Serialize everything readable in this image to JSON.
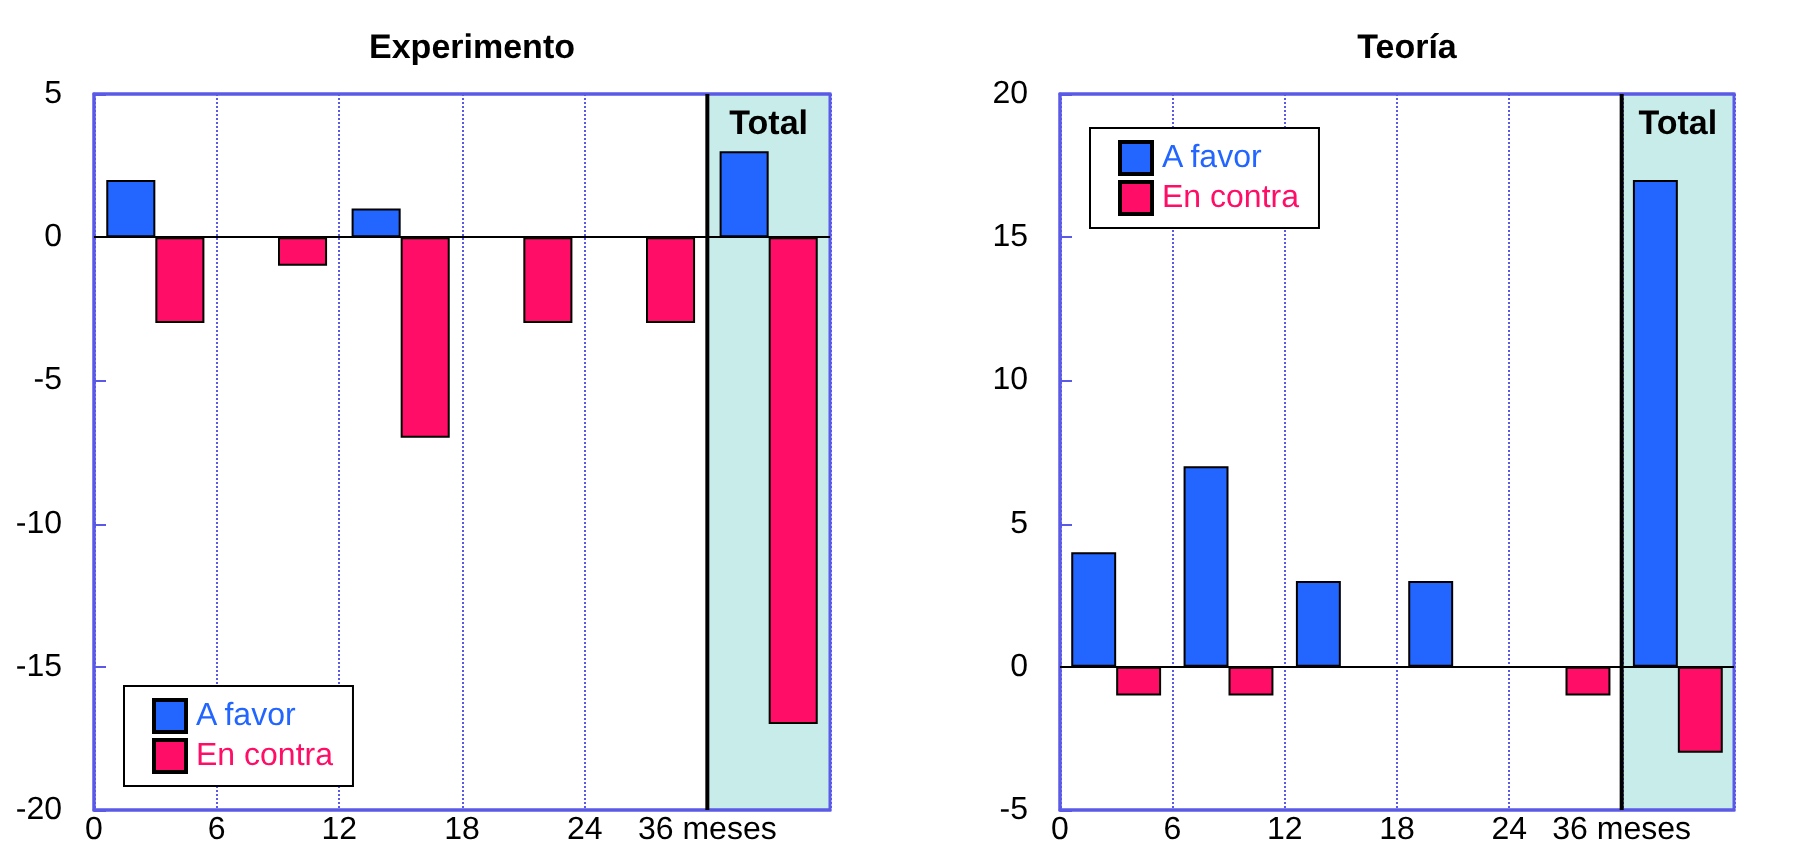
{
  "chart_data": [
    {
      "type": "bar",
      "title": "Experimento",
      "categories": [
        null,
        null,
        null,
        null,
        null,
        "Total"
      ],
      "annotations": [
        "0",
        "6",
        "12",
        "18",
        "24",
        "36 meses"
      ],
      "ylim": [
        -20,
        5
      ],
      "yticks": [
        -20,
        -15,
        -10,
        -5,
        0,
        5
      ],
      "grid": "x",
      "legend": "bottom left",
      "series": [
        {
          "name": "A favor",
          "color": "#2266ff",
          "values": [
            2,
            0,
            1,
            0,
            0,
            3
          ]
        },
        {
          "name": "En contra",
          "color": "#ff0d66",
          "values": [
            -3,
            -1,
            -7,
            -3,
            -3,
            -17
          ]
        }
      ],
      "ref_lines": [
        {
          "axis": "y",
          "value": 0,
          "color": "#000000"
        }
      ],
      "bands": [
        {
          "axis": "x",
          "from": "Total",
          "to": "Total",
          "color": "#c8ecea"
        }
      ]
    },
    {
      "type": "bar",
      "title": "Teoría",
      "categories": [
        null,
        null,
        null,
        null,
        null,
        "Total"
      ],
      "annotations": [
        "0",
        "6",
        "12",
        "18",
        "24",
        "36 meses"
      ],
      "ylim": [
        -5,
        20
      ],
      "yticks": [
        -5,
        0,
        5,
        10,
        15,
        20
      ],
      "grid": "x",
      "legend": "top left",
      "series": [
        {
          "name": "A favor",
          "color": "#2266ff",
          "values": [
            4,
            7,
            3,
            3,
            0,
            17
          ]
        },
        {
          "name": "En contra",
          "color": "#ff0d66",
          "values": [
            -1,
            -1,
            0,
            0,
            -1,
            -3
          ]
        }
      ],
      "ref_lines": [
        {
          "axis": "y",
          "value": 0,
          "color": "#000000"
        }
      ],
      "bands": [
        {
          "axis": "x",
          "from": "Total",
          "to": "Total",
          "color": "#c8ecea"
        }
      ]
    }
  ]
}
